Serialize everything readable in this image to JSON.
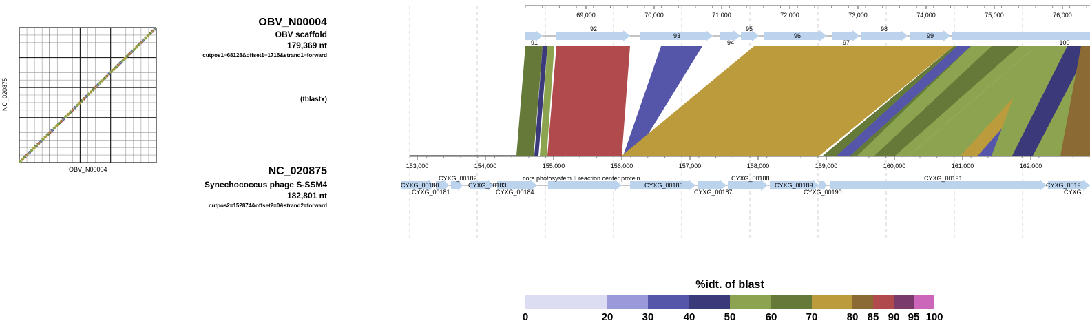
{
  "dotplot": {
    "x_label": "OBV_N00004",
    "y_label": "NC_020875"
  },
  "query": {
    "name": "OBV_N00004",
    "desc": "OBV scaffold",
    "length": "179,369 nt",
    "params": "cutpos1=68128&offset1=1716&strand1=forward"
  },
  "method": "(tblastx)",
  "subject": {
    "name": "NC_020875",
    "desc": "Synechococcus phage S-SSM4",
    "length": "182,801 nt",
    "params": "cutpos2=152874&offset2=0&strand2=forward"
  },
  "top_axis": {
    "ticks": [
      "69,000",
      "70,000",
      "71,000",
      "72,000",
      "73,000",
      "74,000",
      "75,000",
      "76,000"
    ]
  },
  "bottom_axis": {
    "ticks": [
      "153,000",
      "154,000",
      "155,000",
      "156,000",
      "157,000",
      "158,000",
      "159,000",
      "160,000",
      "161,000",
      "162,000"
    ]
  },
  "query_genes": [
    "91",
    "92",
    "93",
    "94",
    "95",
    "96",
    "97",
    "98",
    "99",
    "100"
  ],
  "subject_genes": [
    "CYXG_00180",
    "CYXG_00181",
    "CYXG_00182",
    "CYXG_00183",
    "CYXG_00184",
    "core photosystem II reaction center protein",
    "CYXG_00186",
    "CYXG_00187",
    "CYXG_00188",
    "CYXG_00189",
    "CYXG_00190",
    "CYXG_00191",
    "CYXG_0019",
    "CYXG"
  ],
  "legend": {
    "title": "%idt. of blast",
    "labels": [
      "0",
      "20",
      "30",
      "40",
      "50",
      "60",
      "70",
      "80",
      "85",
      "90",
      "95",
      "100"
    ],
    "colors": [
      "#dcdcf3",
      "#9a9ada",
      "#5555aa",
      "#3a3a7a",
      "#8ca450",
      "#657a38",
      "#bc9b3c",
      "#8c6a34",
      "#b04a4c",
      "#7a3a6a",
      "#cc66bb"
    ]
  },
  "colors": {
    "gene_arrow": "#bcd3ee",
    "grid": "#d8d8d8"
  }
}
